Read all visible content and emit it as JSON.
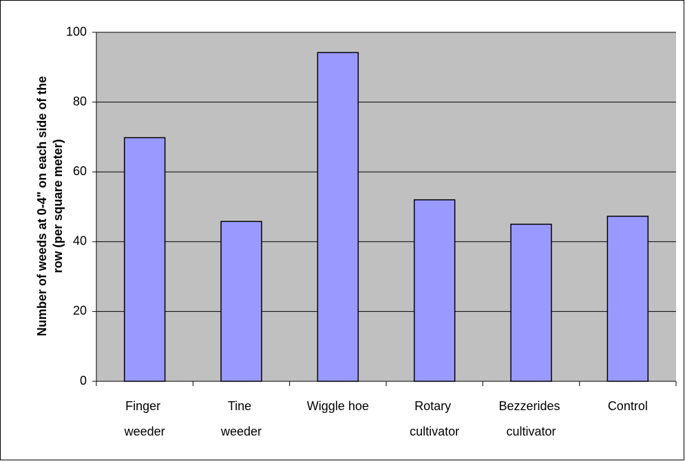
{
  "chart_data": {
    "type": "bar",
    "y_label": [
      "Number of weeds at 0-4\" on each side of the",
      "row (per square meter)"
    ],
    "categories": [
      "Finger weeder",
      "Tine weeder",
      "Wiggle hoe",
      "Rotary cultivator",
      "Bezzerides cultivator",
      "Control"
    ],
    "values": [
      69.8,
      45.8,
      94.2,
      52,
      45,
      47.3
    ],
    "color": "#9999ff",
    "ylim": [
      0,
      100
    ],
    "yticks": [
      0,
      20,
      40,
      60,
      80,
      100
    ],
    "grid": true
  }
}
